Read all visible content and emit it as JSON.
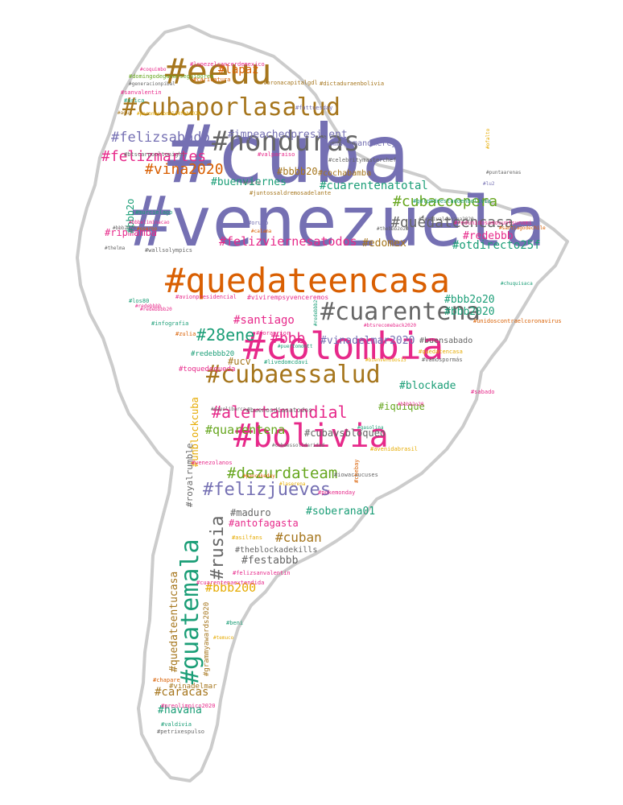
{
  "colors": {
    "purple": "#7570b3",
    "orange": "#d95f02",
    "teal": "#1b9e77",
    "magenta": "#e7298a",
    "green": "#66a61e",
    "gold": "#a6761d",
    "yellow": "#e6ab02",
    "gray": "#666666",
    "outline": "#cccccc"
  },
  "words": [
    "#cuba",
    "#venezuela",
    "#quedateencasa",
    "#colombia",
    "#bolivia",
    "#honduras",
    "#eeuu",
    "#cubaporlasalud",
    "#cuarentena",
    "#cubaessalud",
    "#guatemala",
    "#felizjueves",
    "#dezurdateam",
    "#alertamundial",
    "#rusia",
    "#cubacoopera",
    "#quédateencasa",
    "#felizsabado",
    "#felizmartes",
    "#vina2020",
    "#28ene",
    "#bbb",
    "#quarentena",
    "#cuban",
    "#bbb200",
    "#felizviernesatodos",
    "#impeachedpresident",
    "#cuarentenatotal",
    "#otdirecto25f",
    "#redebbb",
    "#bbb2o20",
    "#bbb2020",
    "#santiago",
    "#vinadelmar2020",
    "#blockade",
    "#iquique",
    "#cubavsbloqueo",
    "#soberana01",
    "#antofagasta",
    "#maduro",
    "#festabbb",
    "#theblockadekills",
    "#caracas",
    "#havana",
    "#quedateentucasa",
    "#lapaz",
    "#ripmamba",
    "#buenviernes",
    "#edomex",
    "#bbbb20",
    "#cochabamba",
    "#madamandmercy",
    "#bbb2o",
    "#ucv",
    "#royalrumble",
    "#unblockcuba",
    "#grammyawards2020",
    "#vinadelmar",
    "#buensabado",
    "#toquedequeda",
    "#redebbb20",
    "#buenosdiasatodos",
    "#wallsolympics",
    "#btscarpooltonight",
    "#vivirempsyvenceremos",
    "#domingodeganarseguidores",
    "#lopezelcancerdemexico",
    "#paronacional24feb2020",
    "#fattuesday",
    "#avionpresidencial",
    "#los80",
    "#infografia",
    "#zulia",
    "#napolibarca",
    "#gasolina",
    "#venezolanos",
    "#pokemonday",
    "#pancakeday",
    "#laserena",
    "#asilfans",
    "#felizsanvalentin",
    "#cuarentenaextendida",
    "#beni",
    "#temuco",
    "#chapare",
    "#preolimpico2020",
    "#valdivia",
    "#petrixespulso",
    "#sanvalentin",
    "#arica",
    "#agua",
    "#caricatura",
    "#coronacapitalgdl",
    "#valparaiso",
    "#murcielago",
    "#bbbeliminacao",
    "#osorno",
    "#thelma",
    "#oruro",
    "#calama",
    "#sucre",
    "#juntossaldremosadelante",
    "#celebritymasterchef",
    "#golpedeestadoenbolivia",
    "#puntaarenas",
    "#festivaldevina2020",
    "#redunidosomosuntsunami",
    "#chuquisaca",
    "#bbb2020",
    "#btsrecomeback2020",
    "#bienvenidos13",
    "#quedatencasa",
    "#vamospormás",
    "#sabado",
    "#unidoscontraelcoronavirus",
    "#puertomontt",
    "#foraprior",
    "#livedomcdavi",
    "#redebbbb",
    "#cubaessolidaridad",
    "#avenidabrasil",
    "#iowacaucuses",
    "#chebay",
    "#lu2",
    "#coquimbo",
    "#generacionpibal",
    "#dictaduraenbolivia",
    "#ofalto",
    "#bbbb2o20",
    "#thebbb2o20",
    "#redebbbb20",
    "#santiagodechile",
    "#redebbb2"
  ]
}
